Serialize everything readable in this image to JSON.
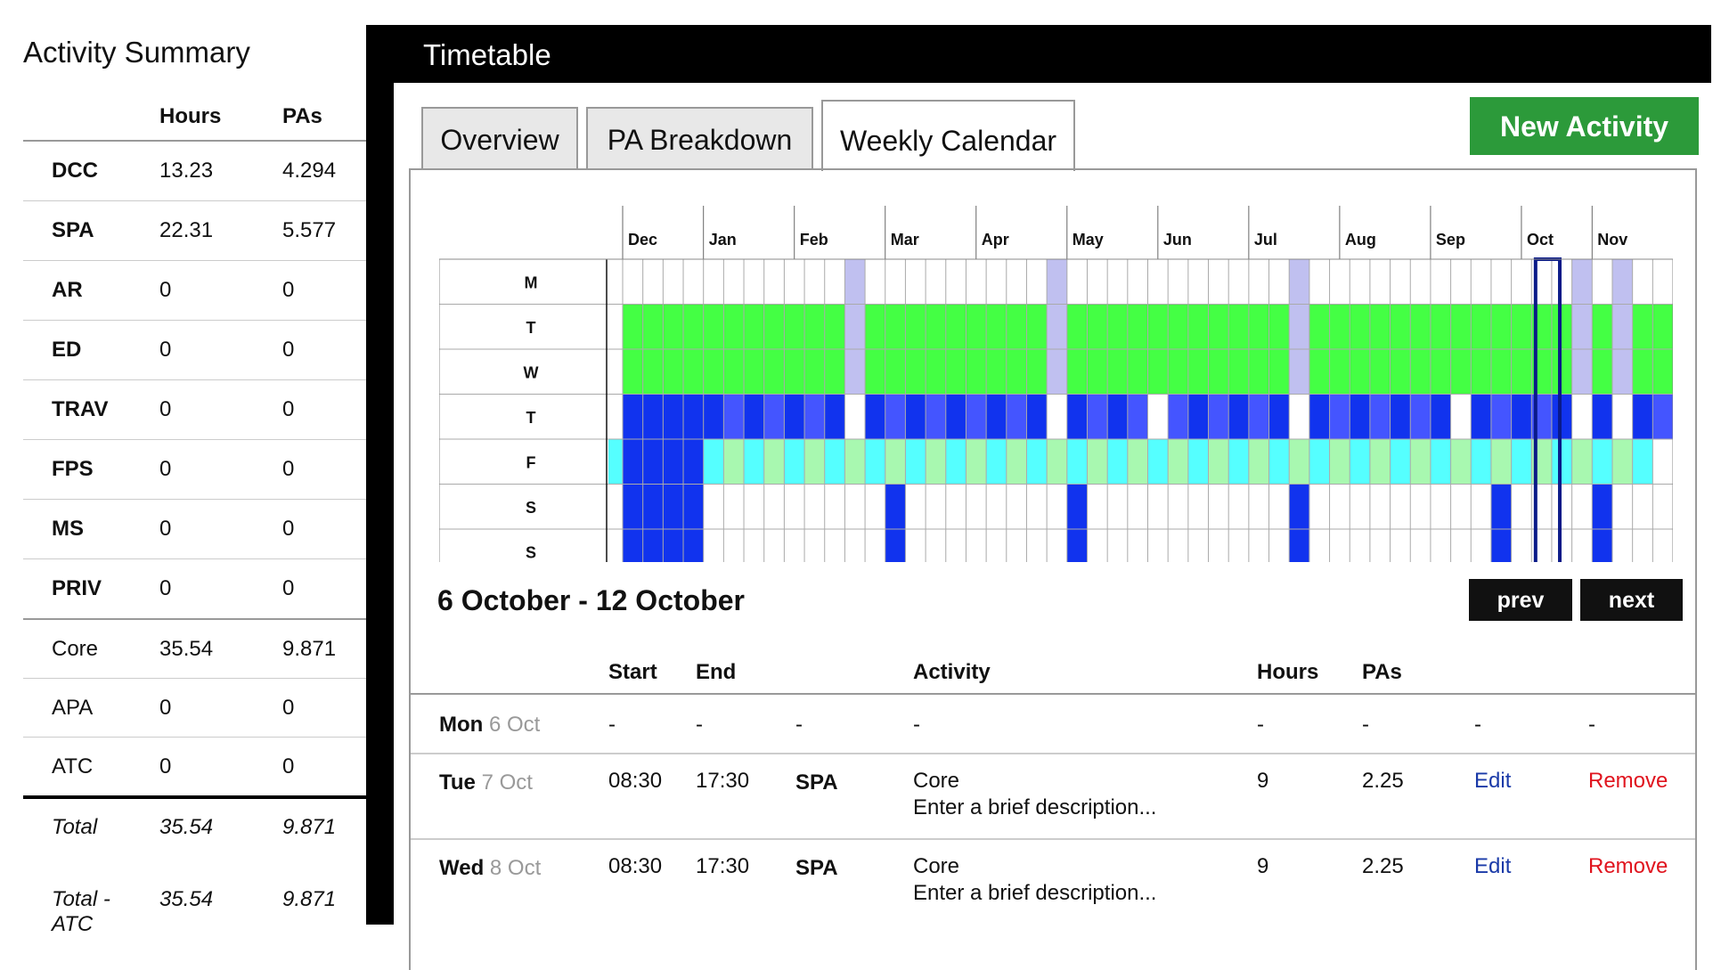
{
  "summary": {
    "title": "Activity Summary",
    "headers": {
      "hours": "Hours",
      "pas": "PAs"
    },
    "rows": [
      {
        "code": "DCC",
        "hours": "13.23",
        "pas": "4.294"
      },
      {
        "code": "SPA",
        "hours": "22.31",
        "pas": "5.577"
      },
      {
        "code": "AR",
        "hours": "0",
        "pas": "0"
      },
      {
        "code": "ED",
        "hours": "0",
        "pas": "0"
      },
      {
        "code": "TRAV",
        "hours": "0",
        "pas": "0"
      },
      {
        "code": "FPS",
        "hours": "0",
        "pas": "0"
      },
      {
        "code": "MS",
        "hours": "0",
        "pas": "0"
      },
      {
        "code": "PRIV",
        "hours": "0",
        "pas": "0"
      }
    ],
    "basic": [
      {
        "code": "Core",
        "hours": "35.54",
        "pas": "9.871"
      },
      {
        "code": "APA",
        "hours": "0",
        "pas": "0"
      },
      {
        "code": "ATC",
        "hours": "0",
        "pas": "0"
      }
    ],
    "totals": [
      {
        "label": "Total",
        "hours": "35.54",
        "pas": "9.871"
      },
      {
        "label": "Total - ATC",
        "hours": "35.54",
        "pas": "9.871"
      }
    ]
  },
  "timetable": {
    "title": "Timetable",
    "tabs": [
      "Overview",
      "PA Breakdown",
      "Weekly Calendar"
    ],
    "active_tab": "Weekly Calendar",
    "new_activity_label": "New Activity",
    "calendar": {
      "months": [
        "Dec",
        "Jan",
        "Feb",
        "Mar",
        "Apr",
        "May",
        "Jun",
        "Jul",
        "Aug",
        "Sep",
        "Oct",
        "Nov"
      ],
      "days": [
        "M",
        "T",
        "W",
        "T",
        "F",
        "S",
        "S"
      ],
      "colors": {
        "green": "#44ff44",
        "lavender": "#c0c0f0",
        "dark_blue": "#1133ee",
        "mid_blue": "#4455ff",
        "cyan": "#55ffff",
        "light_green": "#a8f8b0",
        "current_week": "#0a1a88"
      }
    },
    "range_label": "6 October - 12 October",
    "prev_label": "prev",
    "next_label": "next",
    "events_header": {
      "start": "Start",
      "end": "End",
      "activity": "Activity",
      "hours": "Hours",
      "pas": "PAs"
    },
    "events": [
      {
        "day": "Mon",
        "date": "6 Oct",
        "start": "-",
        "end": "-",
        "code": "-",
        "activity": "-",
        "description": "",
        "hours": "-",
        "pas": "-",
        "edit": "-",
        "remove": "-"
      },
      {
        "day": "Tue",
        "date": "7 Oct",
        "start": "08:30",
        "end": "17:30",
        "code": "SPA",
        "activity": "Core",
        "description": "Enter a brief description...",
        "hours": "9",
        "pas": "2.25",
        "edit": "Edit",
        "remove": "Remove"
      },
      {
        "day": "Wed",
        "date": "8 Oct",
        "start": "08:30",
        "end": "17:30",
        "code": "SPA",
        "activity": "Core",
        "description": "Enter a brief description...",
        "hours": "9",
        "pas": "2.25",
        "edit": "Edit",
        "remove": "Remove"
      }
    ]
  }
}
